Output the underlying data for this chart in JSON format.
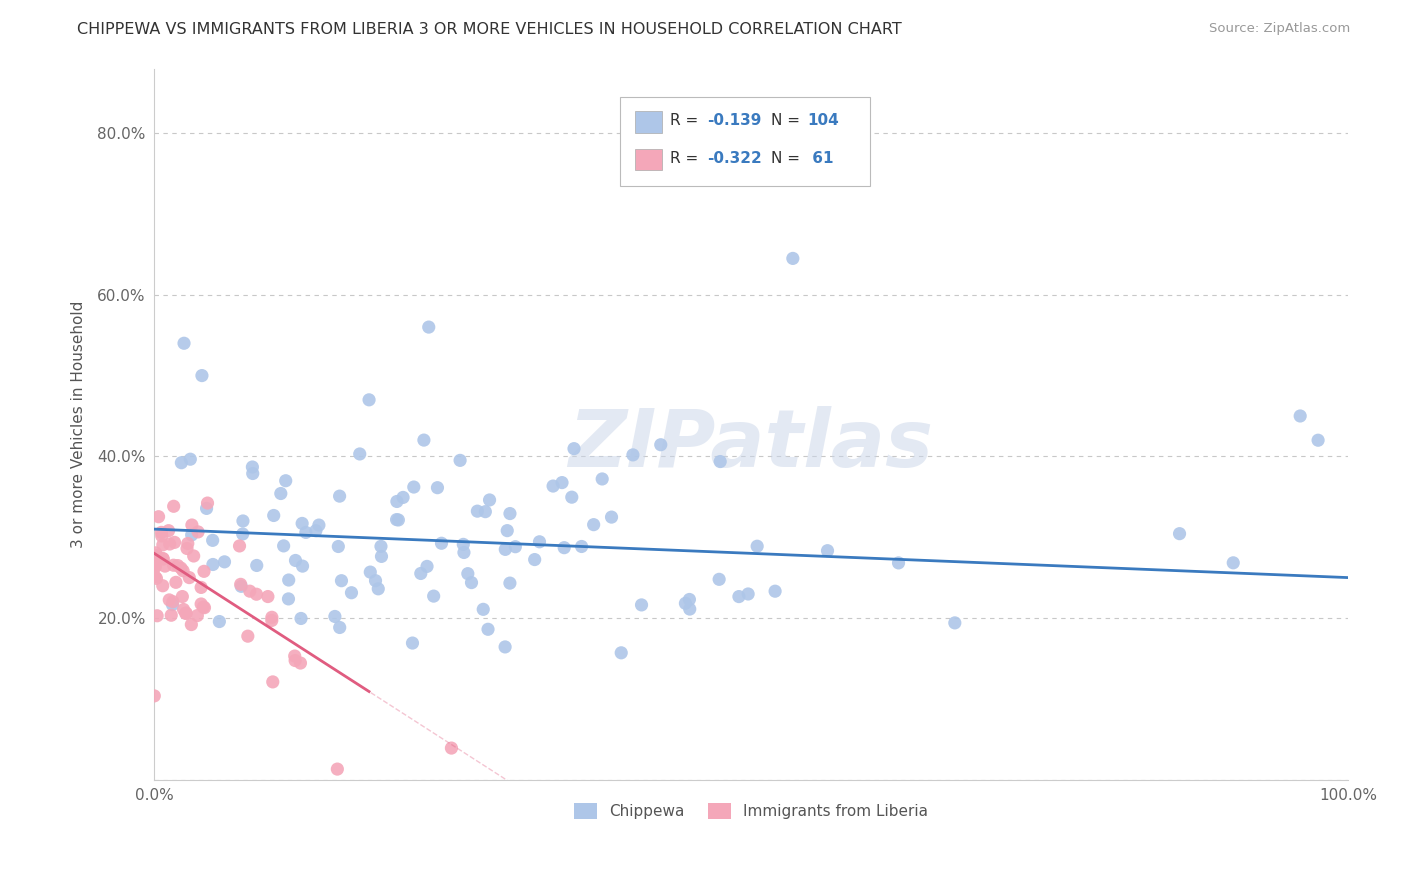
{
  "title": "CHIPPEWA VS IMMIGRANTS FROM LIBERIA 3 OR MORE VEHICLES IN HOUSEHOLD CORRELATION CHART",
  "source": "Source: ZipAtlas.com",
  "ylabel": "3 or more Vehicles in Household",
  "xlim": [
    0.0,
    1.0
  ],
  "ylim": [
    0.0,
    0.88
  ],
  "xticks": [
    0.0,
    0.2,
    0.4,
    0.6,
    0.8,
    1.0
  ],
  "xtick_labels": [
    "0.0%",
    "",
    "",
    "",
    "",
    "100.0%"
  ],
  "yticks": [
    0.0,
    0.2,
    0.4,
    0.6,
    0.8
  ],
  "ytick_labels": [
    "",
    "20.0%",
    "40.0%",
    "60.0%",
    "80.0%"
  ],
  "legend_labels": [
    "Chippewa",
    "Immigrants from Liberia"
  ],
  "chippewa_color": "#aec6e8",
  "liberia_color": "#f4a7b9",
  "chippewa_line_color": "#3a7abf",
  "liberia_line_color": "#e05c80",
  "R_chippewa": -0.139,
  "N_chippewa": 104,
  "R_liberia": -0.322,
  "N_liberia": 61,
  "watermark": "ZIPatlas",
  "background_color": "#ffffff",
  "grid_color": "#c8c8c8"
}
